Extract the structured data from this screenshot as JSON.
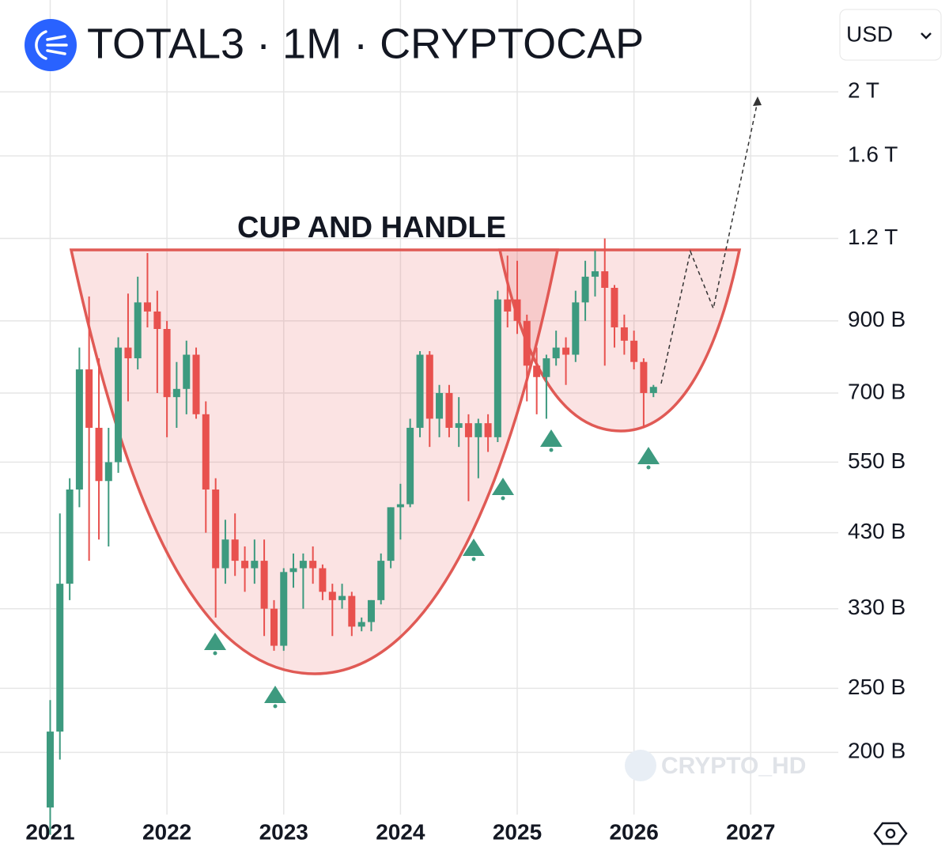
{
  "chart_data": {
    "type": "candlestick",
    "title": "TOTAL3 · 1M · CRYPTOCAP",
    "annotation": "CUP AND HANDLE",
    "currency": "USD",
    "watermark": "CRYPTO_HD",
    "log_scale": true,
    "grid": true,
    "up_color": "#3d9a7f",
    "down_color": "#e8514e",
    "xlim": [
      2020.57,
      2027.75
    ],
    "xticks": [
      2021,
      2022,
      2023,
      2024,
      2025,
      2026,
      2027
    ],
    "ylim": [
      161,
      2755
    ],
    "yticks": [
      {
        "value": 200,
        "label": "200 B"
      },
      {
        "value": 250,
        "label": "250 B"
      },
      {
        "value": 330,
        "label": "330 B"
      },
      {
        "value": 430,
        "label": "430 B"
      },
      {
        "value": 550,
        "label": "550 B"
      },
      {
        "value": 700,
        "label": "700 B"
      },
      {
        "value": 900,
        "label": "900 B"
      },
      {
        "value": 1200,
        "label": "1.2 T"
      },
      {
        "value": 1600,
        "label": "1.6 T"
      },
      {
        "value": 2000,
        "label": "2 T"
      }
    ],
    "x": [
      2021,
      2021.083,
      2021.167,
      2021.25,
      2021.333,
      2021.417,
      2021.5,
      2021.583,
      2021.667,
      2021.75,
      2021.833,
      2021.917,
      2022,
      2022.083,
      2022.167,
      2022.25,
      2022.333,
      2022.417,
      2022.5,
      2022.583,
      2022.667,
      2022.75,
      2022.833,
      2022.917,
      2023,
      2023.083,
      2023.167,
      2023.25,
      2023.333,
      2023.417,
      2023.5,
      2023.583,
      2023.667,
      2023.75,
      2023.833,
      2023.917,
      2024,
      2024.083,
      2024.167,
      2024.25,
      2024.333,
      2024.417,
      2024.5,
      2024.583,
      2024.667,
      2024.75,
      2024.833,
      2024.917,
      2025,
      2025.083,
      2025.167,
      2025.25,
      2025.333,
      2025.417,
      2025.5,
      2025.583,
      2025.667,
      2025.75,
      2025.833,
      2025.917,
      2026,
      2026.083,
      2026.167
    ],
    "open": [
      165,
      215,
      360,
      500,
      760,
      620,
      515,
      550,
      820,
      790,
      960,
      930,
      875,
      690,
      710,
      800,
      650,
      500,
      380,
      420,
      390,
      380,
      390,
      330,
      290,
      375,
      380,
      390,
      380,
      350,
      340,
      345,
      310,
      315,
      340,
      390,
      470,
      475,
      620,
      800,
      640,
      700,
      620,
      630,
      600,
      630,
      600,
      970,
      970,
      900,
      770,
      740,
      790,
      820,
      800,
      960,
      1050,
      1070,
      1010,
      880,
      840,
      780,
      700
    ],
    "high": [
      240,
      460,
      520,
      820,
      980,
      790,
      620,
      850,
      990,
      1050,
      1140,
      1000,
      900,
      780,
      840,
      820,
      680,
      520,
      450,
      460,
      410,
      420,
      420,
      340,
      380,
      400,
      400,
      410,
      385,
      360,
      360,
      350,
      320,
      340,
      400,
      470,
      510,
      640,
      810,
      810,
      720,
      720,
      690,
      650,
      640,
      650,
      1000,
      1130,
      1110,
      920,
      820,
      800,
      870,
      850,
      1000,
      1110,
      1150,
      1200,
      1020,
      920,
      870,
      790,
      720
    ],
    "low": [
      150,
      195,
      340,
      470,
      390,
      420,
      410,
      530,
      680,
      760,
      880,
      700,
      600,
      620,
      650,
      640,
      430,
      320,
      360,
      370,
      350,
      360,
      300,
      285,
      285,
      355,
      330,
      360,
      340,
      300,
      330,
      300,
      305,
      305,
      335,
      380,
      420,
      470,
      600,
      580,
      600,
      600,
      580,
      480,
      520,
      570,
      590,
      880,
      860,
      680,
      650,
      640,
      770,
      720,
      780,
      900,
      980,
      770,
      820,
      800,
      760,
      620,
      690
    ],
    "close": [
      215,
      360,
      500,
      760,
      620,
      515,
      550,
      820,
      790,
      960,
      930,
      875,
      690,
      710,
      800,
      650,
      500,
      380,
      420,
      390,
      380,
      390,
      330,
      290,
      375,
      380,
      390,
      380,
      350,
      340,
      345,
      310,
      315,
      340,
      390,
      470,
      475,
      620,
      800,
      640,
      700,
      620,
      630,
      600,
      630,
      600,
      970,
      930,
      900,
      770,
      740,
      790,
      820,
      800,
      960,
      1050,
      1070,
      1010,
      880,
      840,
      780,
      700,
      715
    ]
  }
}
